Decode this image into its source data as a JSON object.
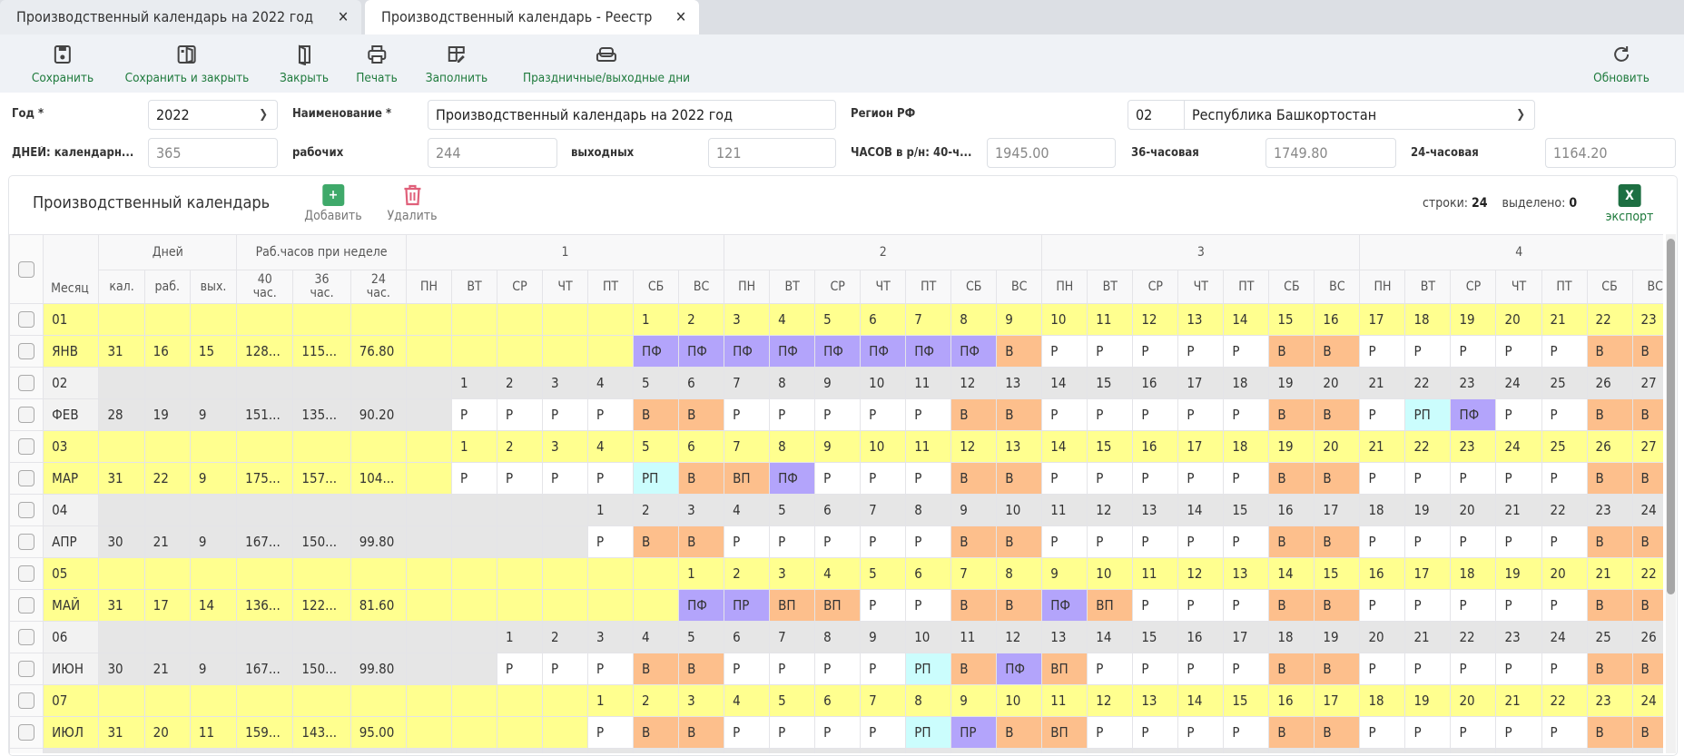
{
  "tabs": [
    {
      "label": "Производственный календарь на 2022 год",
      "active": true
    },
    {
      "label": "Производственный календарь - Реестр",
      "active": false
    }
  ],
  "toolbar": {
    "buttons": [
      {
        "label": "Сохранить",
        "icon": "save-icon"
      },
      {
        "label": "Сохранить и закрыть",
        "icon": "save-close-icon"
      },
      {
        "label": "Закрыть",
        "icon": "close-door-icon"
      },
      {
        "label": "Печать",
        "icon": "print-icon"
      },
      {
        "label": "Заполнить",
        "icon": "fill-table-icon"
      },
      {
        "label": "Праздничные/выходные дни",
        "icon": "holidays-icon"
      }
    ],
    "refresh": {
      "label": "Обновить",
      "icon": "refresh-icon"
    }
  },
  "form": {
    "year_label": "Год *",
    "year_value": "2022",
    "name_label": "Наименование *",
    "name_value": "Производственный календарь на 2022 год",
    "region_label": "Регион РФ",
    "region_code": "02",
    "region_name": "Республика Башкортостан",
    "days_cal_label": "ДНЕЙ: календарн...",
    "days_cal": "365",
    "days_work_label": "рабочих",
    "days_work": "244",
    "days_off_label": "выходных",
    "days_off": "121",
    "hours40_label": "ЧАСОВ в р/н: 40-ч...",
    "hours40": "1945.00",
    "hours36_label": "36-часовая",
    "hours36": "1749.80",
    "hours24_label": "24-часовая",
    "hours24": "1164.20"
  },
  "panel": {
    "title": "Производственный календарь",
    "add_label": "Добавить",
    "delete_label": "Удалить",
    "rows_label": "строки:",
    "rows_count": "24",
    "selected_label": "выделено:",
    "selected_count": "0",
    "export_label": "экспорт",
    "export_icon_text": "X"
  },
  "table": {
    "month_header": "Месяц",
    "days_header": "Дней",
    "hours_header": "Раб.часов при неделе",
    "days_sub": [
      "кал.",
      "раб.",
      "вых."
    ],
    "hours_sub": [
      "40 час.",
      "36 час.",
      "24 час."
    ],
    "weeks": [
      "1",
      "2",
      "3",
      "4"
    ],
    "weekdays": [
      "ПН",
      "ВТ",
      "СР",
      "ЧТ",
      "ПТ",
      "СБ",
      "ВС"
    ],
    "status_colors": {
      "ПФ": "#b3a4fb",
      "ПР": "#b3a4fb",
      "В": "#fdbf8c",
      "ВП": "#fdbf8c",
      "РП": "#cbfdfd",
      "Р": "#ffffff"
    },
    "row_colors": {
      "odd": "#ffff8f",
      "even": "#e6e6e6"
    },
    "months": [
      {
        "num": "01",
        "name": "ЯНВ",
        "cal": "31",
        "work": "16",
        "off": "15",
        "h40": "128...",
        "h36": "115...",
        "h24": "76.80",
        "days": [
          "",
          "",
          "",
          "",
          "",
          "1",
          "2",
          "3",
          "4",
          "5",
          "6",
          "7",
          "8",
          "9",
          "10",
          "11",
          "12",
          "13",
          "14",
          "15",
          "16",
          "17",
          "18",
          "19",
          "20",
          "21",
          "22",
          "23"
        ],
        "types": [
          "",
          "",
          "",
          "",
          "",
          "ПФ",
          "ПФ",
          "ПФ",
          "ПФ",
          "ПФ",
          "ПФ",
          "ПФ",
          "ПФ",
          "В",
          "Р",
          "Р",
          "Р",
          "Р",
          "Р",
          "В",
          "В",
          "Р",
          "Р",
          "Р",
          "Р",
          "Р",
          "В",
          "В"
        ]
      },
      {
        "num": "02",
        "name": "ФЕВ",
        "cal": "28",
        "work": "19",
        "off": "9",
        "h40": "151...",
        "h36": "135...",
        "h24": "90.20",
        "days": [
          "",
          "1",
          "2",
          "3",
          "4",
          "5",
          "6",
          "7",
          "8",
          "9",
          "10",
          "11",
          "12",
          "13",
          "14",
          "15",
          "16",
          "17",
          "18",
          "19",
          "20",
          "21",
          "22",
          "23",
          "24",
          "25",
          "26",
          "27"
        ],
        "types": [
          "",
          "Р",
          "Р",
          "Р",
          "Р",
          "В",
          "В",
          "Р",
          "Р",
          "Р",
          "Р",
          "Р",
          "В",
          "В",
          "Р",
          "Р",
          "Р",
          "Р",
          "Р",
          "В",
          "В",
          "Р",
          "РП",
          "ПФ",
          "Р",
          "Р",
          "В",
          "В"
        ]
      },
      {
        "num": "03",
        "name": "МАР",
        "cal": "31",
        "work": "22",
        "off": "9",
        "h40": "175...",
        "h36": "157...",
        "h24": "104...",
        "days": [
          "",
          "1",
          "2",
          "3",
          "4",
          "5",
          "6",
          "7",
          "8",
          "9",
          "10",
          "11",
          "12",
          "13",
          "14",
          "15",
          "16",
          "17",
          "18",
          "19",
          "20",
          "21",
          "22",
          "23",
          "24",
          "25",
          "26",
          "27"
        ],
        "types": [
          "",
          "Р",
          "Р",
          "Р",
          "Р",
          "РП",
          "В",
          "ВП",
          "ПФ",
          "Р",
          "Р",
          "Р",
          "В",
          "В",
          "Р",
          "Р",
          "Р",
          "Р",
          "Р",
          "В",
          "В",
          "Р",
          "Р",
          "Р",
          "Р",
          "Р",
          "В",
          "В"
        ]
      },
      {
        "num": "04",
        "name": "АПР",
        "cal": "30",
        "work": "21",
        "off": "9",
        "h40": "167...",
        "h36": "150...",
        "h24": "99.80",
        "days": [
          "",
          "",
          "",
          "",
          "1",
          "2",
          "3",
          "4",
          "5",
          "6",
          "7",
          "8",
          "9",
          "10",
          "11",
          "12",
          "13",
          "14",
          "15",
          "16",
          "17",
          "18",
          "19",
          "20",
          "21",
          "22",
          "23",
          "24"
        ],
        "types": [
          "",
          "",
          "",
          "",
          "Р",
          "В",
          "В",
          "Р",
          "Р",
          "Р",
          "Р",
          "Р",
          "В",
          "В",
          "Р",
          "Р",
          "Р",
          "Р",
          "Р",
          "В",
          "В",
          "Р",
          "Р",
          "Р",
          "Р",
          "Р",
          "В",
          "В"
        ]
      },
      {
        "num": "05",
        "name": "МАЙ",
        "cal": "31",
        "work": "17",
        "off": "14",
        "h40": "136...",
        "h36": "122...",
        "h24": "81.60",
        "days": [
          "",
          "",
          "",
          "",
          "",
          "",
          "1",
          "2",
          "3",
          "4",
          "5",
          "6",
          "7",
          "8",
          "9",
          "10",
          "11",
          "12",
          "13",
          "14",
          "15",
          "16",
          "17",
          "18",
          "19",
          "20",
          "21",
          "22"
        ],
        "types": [
          "",
          "",
          "",
          "",
          "",
          "",
          "ПФ",
          "ПР",
          "ВП",
          "ВП",
          "Р",
          "Р",
          "В",
          "В",
          "ПФ",
          "ВП",
          "Р",
          "Р",
          "Р",
          "В",
          "В",
          "Р",
          "Р",
          "Р",
          "Р",
          "Р",
          "В",
          "В"
        ]
      },
      {
        "num": "06",
        "name": "ИЮН",
        "cal": "30",
        "work": "21",
        "off": "9",
        "h40": "167...",
        "h36": "150...",
        "h24": "99.80",
        "days": [
          "",
          "",
          "1",
          "2",
          "3",
          "4",
          "5",
          "6",
          "7",
          "8",
          "9",
          "10",
          "11",
          "12",
          "13",
          "14",
          "15",
          "16",
          "17",
          "18",
          "19",
          "20",
          "21",
          "22",
          "23",
          "24",
          "25",
          "26"
        ],
        "types": [
          "",
          "",
          "Р",
          "Р",
          "Р",
          "В",
          "В",
          "Р",
          "Р",
          "Р",
          "Р",
          "РП",
          "В",
          "ПФ",
          "ВП",
          "Р",
          "Р",
          "Р",
          "Р",
          "В",
          "В",
          "Р",
          "Р",
          "Р",
          "Р",
          "Р",
          "В",
          "В"
        ]
      },
      {
        "num": "07",
        "name": "ИЮЛ",
        "cal": "31",
        "work": "20",
        "off": "11",
        "h40": "159...",
        "h36": "143...",
        "h24": "95.00",
        "days": [
          "",
          "",
          "",
          "",
          "1",
          "2",
          "3",
          "4",
          "5",
          "6",
          "7",
          "8",
          "9",
          "10",
          "11",
          "12",
          "13",
          "14",
          "15",
          "16",
          "17",
          "18",
          "19",
          "20",
          "21",
          "22",
          "23",
          "24"
        ],
        "types": [
          "",
          "",
          "",
          "",
          "Р",
          "В",
          "В",
          "Р",
          "Р",
          "Р",
          "Р",
          "РП",
          "ПР",
          "В",
          "ВП",
          "Р",
          "Р",
          "Р",
          "Р",
          "В",
          "В",
          "Р",
          "Р",
          "Р",
          "Р",
          "Р",
          "В",
          "В"
        ]
      }
    ]
  }
}
